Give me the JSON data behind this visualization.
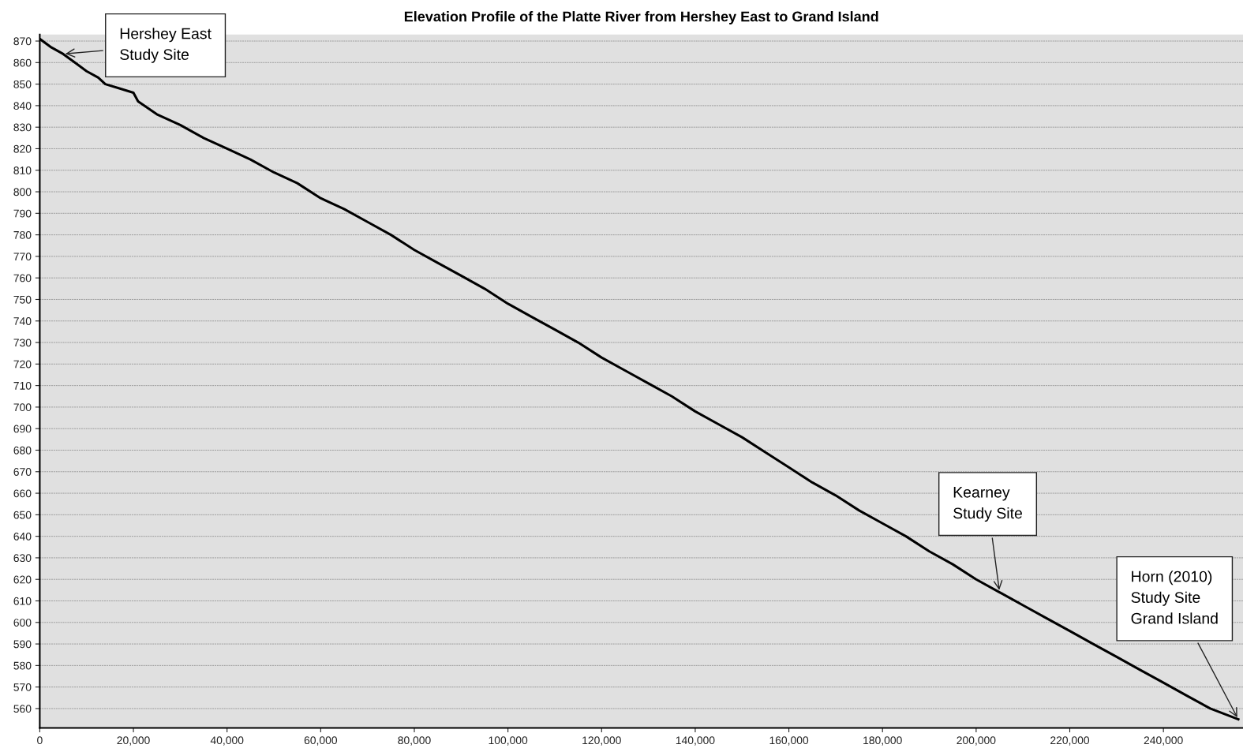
{
  "chart_data": {
    "type": "line",
    "title": "Elevation Profile of the Platte River from Hershey East to Grand Island",
    "x": [
      0,
      2500,
      5000,
      7500,
      10000,
      12500,
      14000,
      17000,
      20000,
      21000,
      25000,
      30000,
      35000,
      40000,
      45000,
      50000,
      55000,
      60000,
      65000,
      70000,
      75000,
      80000,
      85000,
      90000,
      95000,
      100000,
      105000,
      110000,
      115000,
      120000,
      125000,
      130000,
      135000,
      140000,
      145000,
      150000,
      155000,
      160000,
      165000,
      170000,
      175000,
      180000,
      185000,
      190000,
      195000,
      200000,
      205000,
      210000,
      215000,
      220000,
      225000,
      230000,
      235000,
      240000,
      245000,
      250000,
      256000
    ],
    "series": [
      {
        "color": "#000000",
        "values": [
          871,
          867,
          864,
          860,
          856,
          853,
          850,
          848,
          846,
          842,
          836,
          831,
          825,
          820,
          815,
          809,
          804,
          797,
          792,
          786,
          780,
          773,
          767,
          761,
          755,
          748,
          742,
          736,
          730,
          723,
          717,
          711,
          705,
          698,
          692,
          686,
          679,
          672,
          665,
          659,
          652,
          646,
          640,
          633,
          627,
          620,
          614,
          608,
          602,
          596,
          590,
          584,
          578,
          572,
          566,
          560,
          555
        ]
      }
    ],
    "xlim": [
      0,
      257000
    ],
    "ylim": [
      551,
      873
    ],
    "xticks": [
      {
        "value": 0,
        "label": "0"
      },
      {
        "value": 20000,
        "label": "20,000"
      },
      {
        "value": 40000,
        "label": "40,000"
      },
      {
        "value": 60000,
        "label": "60,000"
      },
      {
        "value": 80000,
        "label": "80,000"
      },
      {
        "value": 100000,
        "label": "100,000"
      },
      {
        "value": 120000,
        "label": "120,000"
      },
      {
        "value": 140000,
        "label": "140,000"
      },
      {
        "value": 160000,
        "label": "160,000"
      },
      {
        "value": 180000,
        "label": "180,000"
      },
      {
        "value": 200000,
        "label": "200,000"
      },
      {
        "value": 220000,
        "label": "220,000"
      },
      {
        "value": 240000,
        "label": "240,000"
      }
    ],
    "yticks": [
      560,
      570,
      580,
      590,
      600,
      610,
      620,
      630,
      640,
      650,
      660,
      670,
      680,
      690,
      700,
      710,
      720,
      730,
      740,
      750,
      760,
      770,
      780,
      790,
      800,
      810,
      820,
      830,
      840,
      850,
      860,
      870
    ],
    "grid": "y",
    "marker": "none",
    "line_style": "solid",
    "annotations": [
      {
        "text": "Hershey East\nStudy Site",
        "x": 5000,
        "y": 864
      },
      {
        "text": "Kearney\nStudy Site",
        "x": 205000,
        "y": 614
      },
      {
        "text": "Horn (2010)\nStudy Site\nGrand Island",
        "x": 256000,
        "y": 555
      }
    ]
  }
}
